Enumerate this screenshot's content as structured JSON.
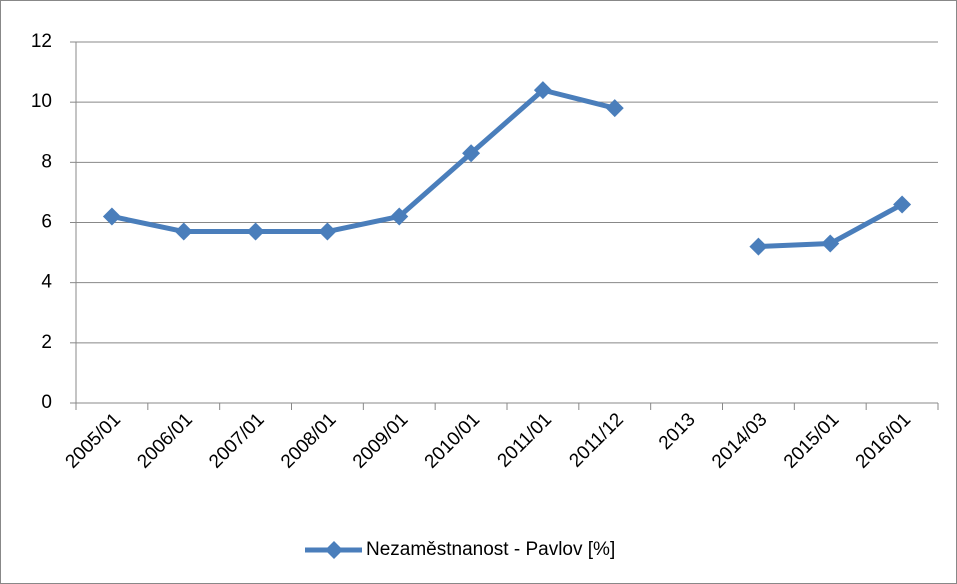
{
  "chart_data": {
    "type": "line",
    "categories": [
      "2005/01",
      "2006/01",
      "2007/01",
      "2008/01",
      "2009/01",
      "2010/01",
      "2011/01",
      "2011/12",
      "2013",
      "2014/03",
      "2015/01",
      "2016/01"
    ],
    "series": [
      {
        "name": "Nezaměstnanost - Pavlov [%]",
        "color": "#4a7ebb",
        "values": [
          6.2,
          5.7,
          5.7,
          5.7,
          6.2,
          8.3,
          10.4,
          9.8,
          null,
          5.2,
          5.3,
          6.6
        ]
      }
    ],
    "ylim": [
      0,
      12
    ],
    "yticks": [
      0,
      2,
      4,
      6,
      8,
      10,
      12
    ],
    "grid": true,
    "legend": "bottom"
  }
}
